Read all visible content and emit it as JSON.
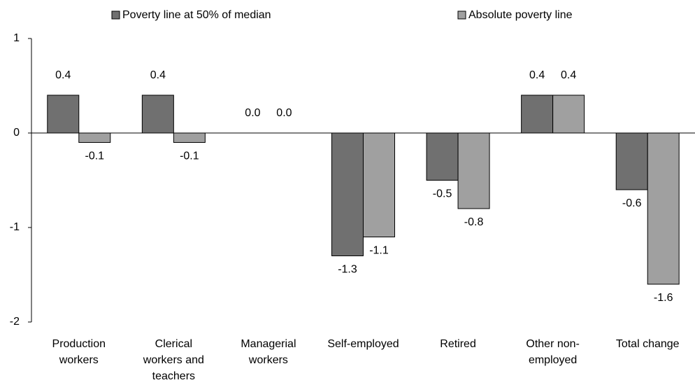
{
  "chart_data": {
    "type": "bar",
    "categories": [
      "Production workers",
      "Clerical workers and teachers",
      "Managerial workers",
      "Self-employed",
      "Retired",
      "Other non-employed",
      "Total change"
    ],
    "series": [
      {
        "name": "Poverty line at 50% of median",
        "color": "#707070",
        "values": [
          0.4,
          0.4,
          0,
          -1.3,
          -0.5,
          0.4,
          -0.6
        ],
        "value_labels": [
          "0.4",
          "0.4",
          "0.0",
          "-1.3",
          "-0.5",
          "0.4",
          "-0.6"
        ]
      },
      {
        "name": "Absolute poverty line",
        "color": "#a0a0a0",
        "values": [
          -0.1,
          -0.1,
          0,
          -1.1,
          -0.8,
          0.4,
          -1.6
        ],
        "value_labels": [
          "-0.1",
          "-0.1",
          "0.0",
          "-1.1",
          "-0.8",
          "0.4",
          "-1.6"
        ]
      }
    ],
    "ylim": [
      -2,
      1
    ],
    "yticks": [
      -2,
      -1,
      0,
      1
    ],
    "grid": false
  }
}
